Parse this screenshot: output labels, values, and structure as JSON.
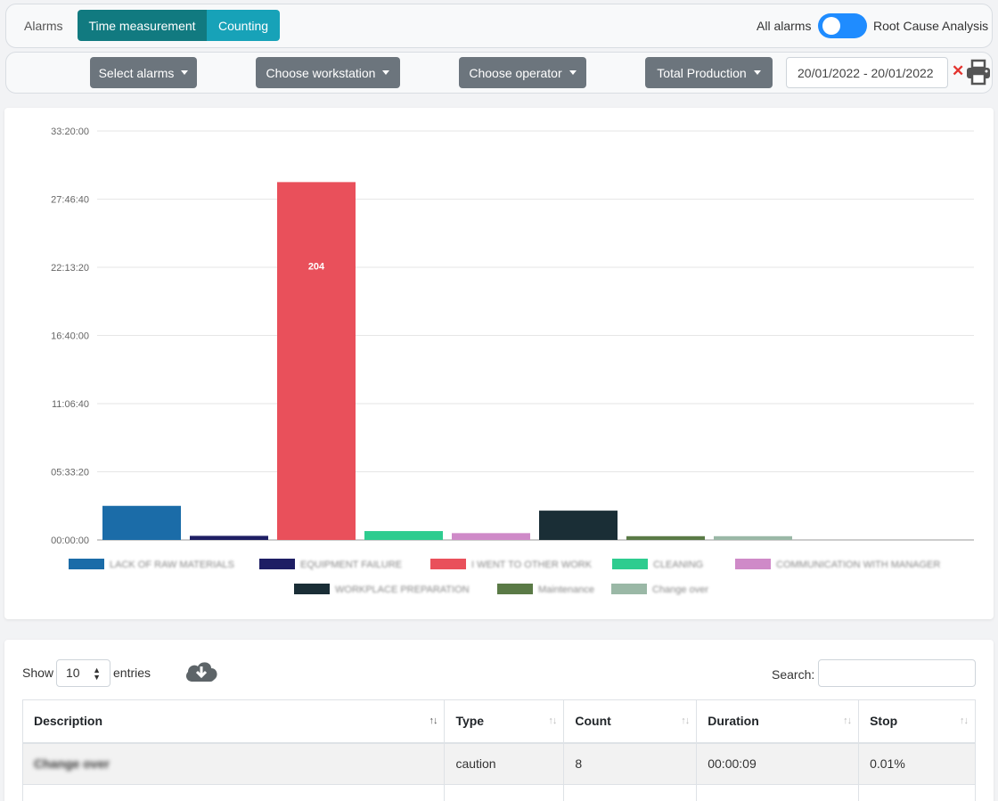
{
  "header": {
    "alarms_label": "Alarms",
    "mode_time": "Time measurement",
    "mode_counting": "Counting",
    "all_alarms_label": "All alarms",
    "toggle_on": true,
    "root_cause_label": "Root Cause Analysis"
  },
  "filters": {
    "select_alarms": "Select alarms",
    "choose_workstation": "Choose workstation",
    "choose_operator": "Choose operator",
    "total_production": "Total Production",
    "date_range": "20/01/2022 - 20/01/2022"
  },
  "chart_data": {
    "type": "bar",
    "y_ticks": [
      "00:00:00",
      "05:33:20",
      "11:06:40",
      "16:40:00",
      "22:13:20",
      "27:46:40",
      "33:20:00"
    ],
    "ylim_seconds": [
      0,
      120000
    ],
    "categories": [
      "LACK OF RAW MATERIALS",
      "EQUIPMENT FAILURE",
      "I WENT TO OTHER WORK",
      "CLEANING",
      "COMMUNICATION WITH MANAGER",
      "WORKPLACE PREPARATION",
      "Maintenance",
      "Change over"
    ],
    "values_seconds": [
      10000,
      1200,
      105000,
      2600,
      2000,
      8600,
      1100,
      1100
    ],
    "data_labels": [
      "",
      "",
      "204",
      "",
      "",
      "",
      "",
      ""
    ],
    "colors": [
      "#1b6ca8",
      "#1e1e64",
      "#e9505b",
      "#2ecc8f",
      "#cf8ac8",
      "#1a2e36",
      "#5a7a46",
      "#9ab8a6"
    ],
    "legend_blurred": true
  },
  "table": {
    "show_label": "Show",
    "entries_value": "10",
    "entries_label": "entries",
    "search_label": "Search:",
    "columns": [
      "Description",
      "Type",
      "Count",
      "Duration",
      "Stop"
    ],
    "rows": [
      [
        "Change over",
        "caution",
        "8",
        "00:00:09",
        "0.01%"
      ],
      [
        "",
        "",
        "",
        "",
        ""
      ]
    ]
  }
}
